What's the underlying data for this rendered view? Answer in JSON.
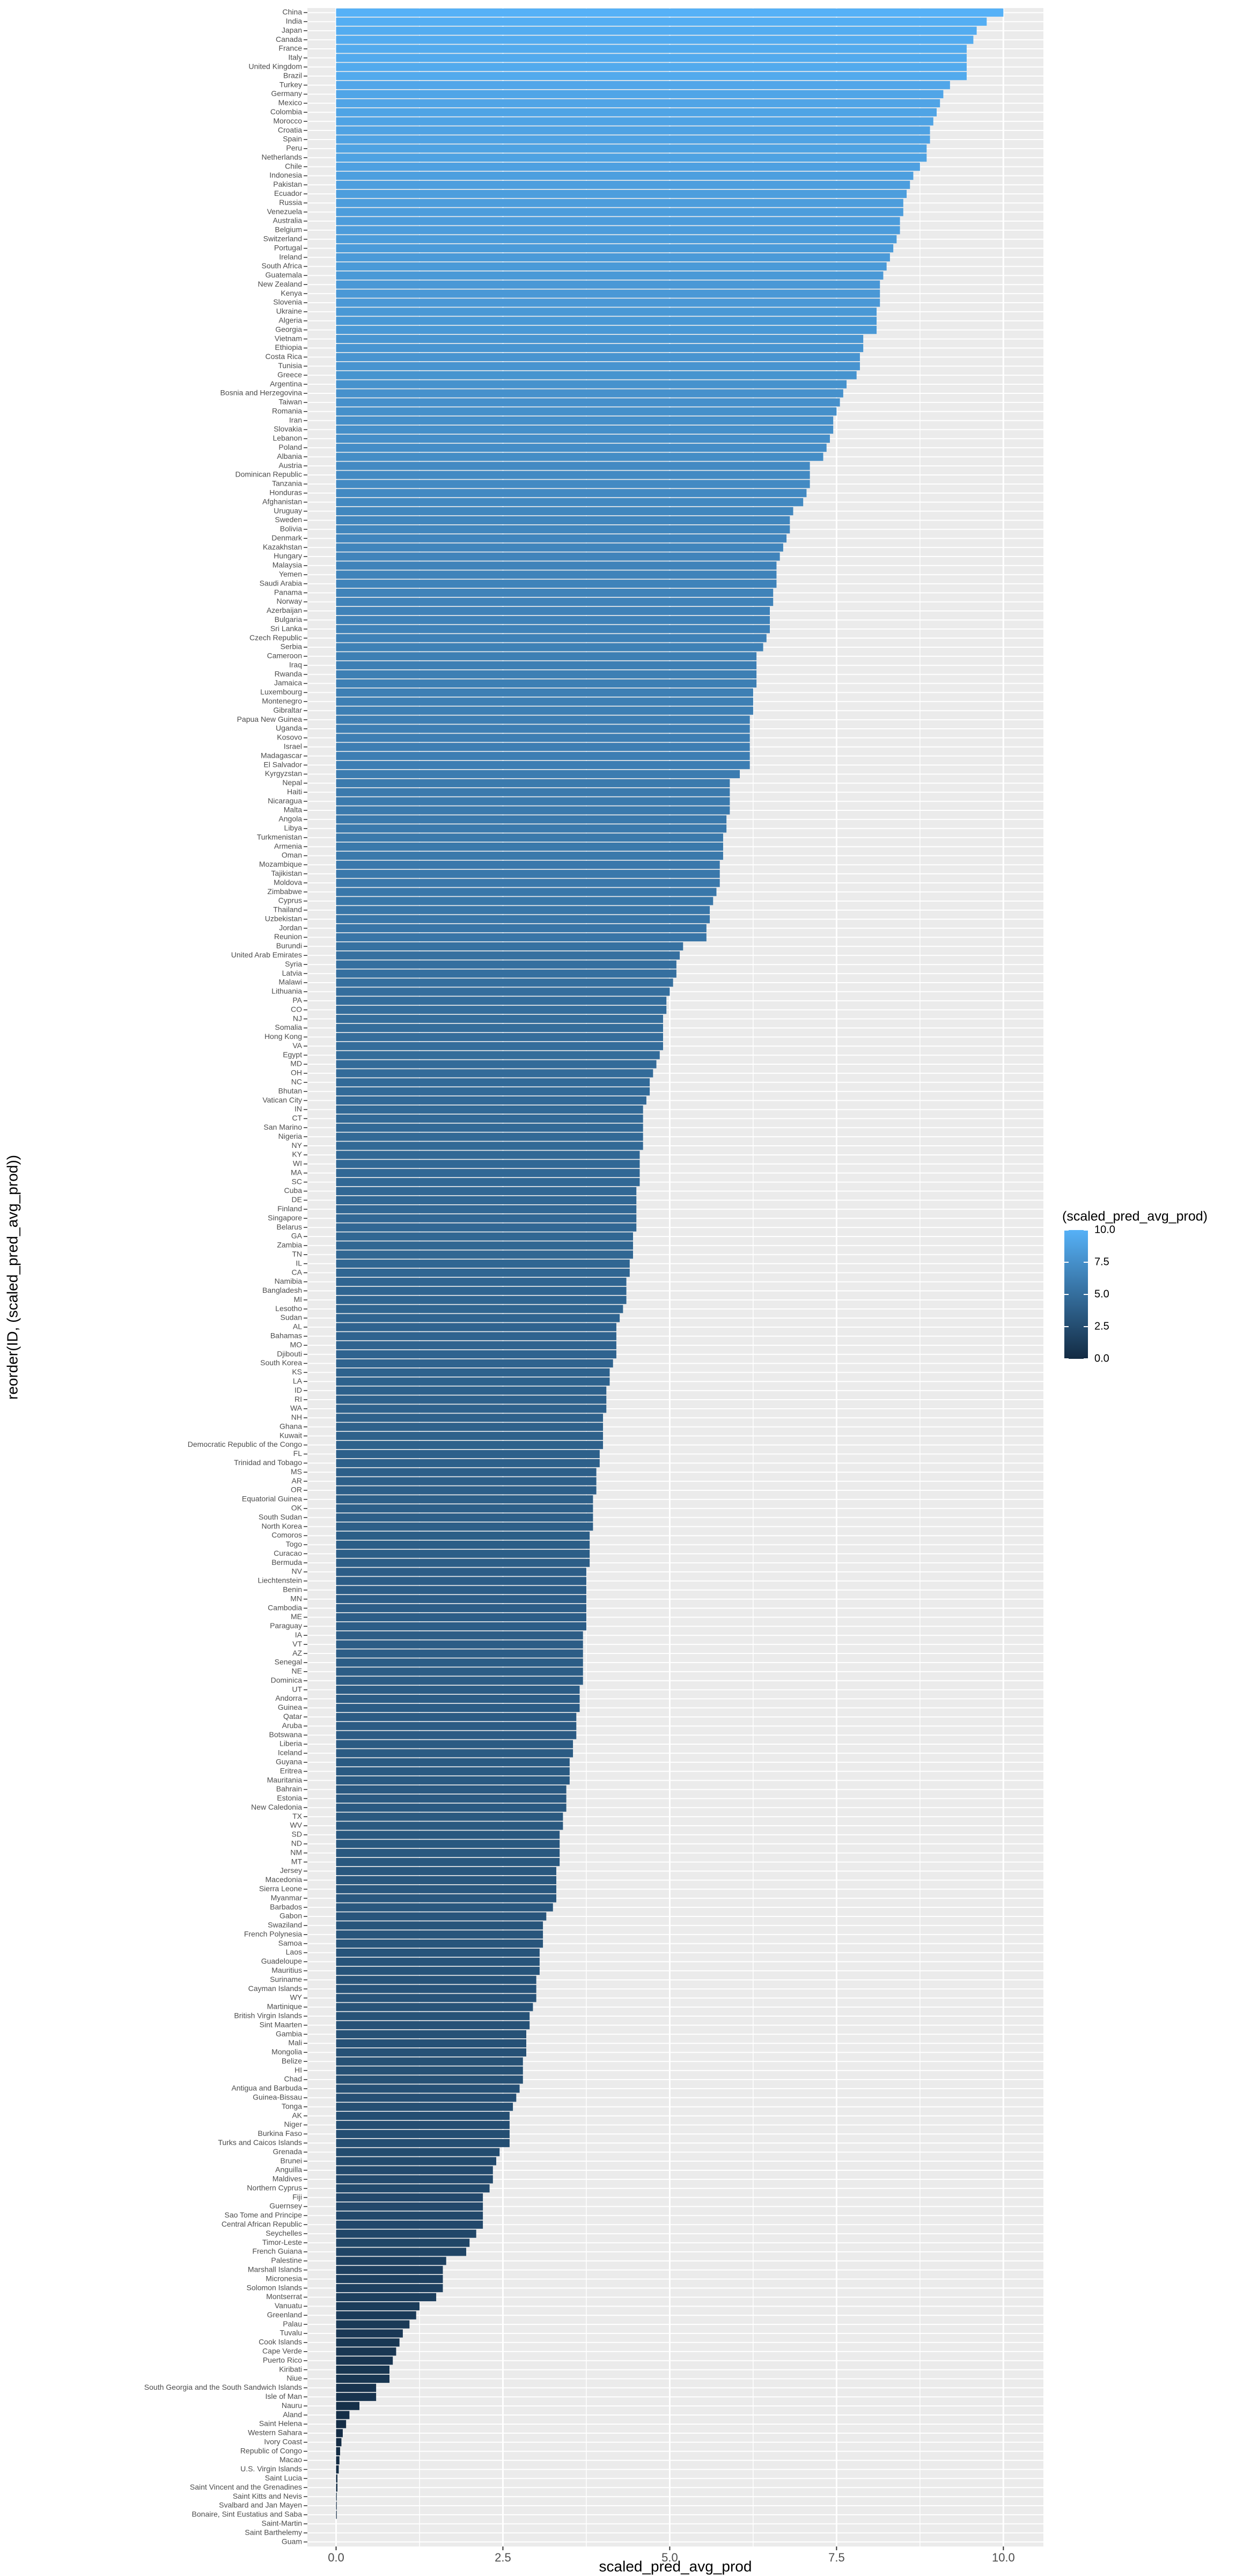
{
  "chart_data": {
    "type": "barh",
    "x_label": "scaled_pred_avg_prod",
    "y_label": "reorder(ID, (scaled_pred_avg_prod))",
    "legend_title": "(scaled_pred_avg_prod)",
    "low_color": "#132b43",
    "high_color": "#56b1f7",
    "color_lim": [
      0,
      10
    ],
    "legend_ticks": [
      {
        "value": 0,
        "label": "0.0"
      },
      {
        "value": 2.5,
        "label": "2.5"
      },
      {
        "value": 5,
        "label": "5.0"
      },
      {
        "value": 7.5,
        "label": "7.5"
      },
      {
        "value": 10,
        "label": "10.0"
      }
    ],
    "xlim": [
      -0.43,
      10.6
    ],
    "xticks": [
      {
        "value": 0,
        "label": "0.0"
      },
      {
        "value": 2.5,
        "label": "2.5"
      },
      {
        "value": 5,
        "label": "5.0"
      },
      {
        "value": 7.5,
        "label": "7.5"
      },
      {
        "value": 10,
        "label": "10.0"
      }
    ],
    "grid": true,
    "categories": [
      "China",
      "India",
      "Japan",
      "Canada",
      "France",
      "Italy",
      "United Kingdom",
      "Brazil",
      "Turkey",
      "Germany",
      "Mexico",
      "Colombia",
      "Morocco",
      "Croatia",
      "Spain",
      "Peru",
      "Netherlands",
      "Chile",
      "Indonesia",
      "Pakistan",
      "Ecuador",
      "Russia",
      "Venezuela",
      "Australia",
      "Belgium",
      "Switzerland",
      "Portugal",
      "Ireland",
      "South Africa",
      "Guatemala",
      "New Zealand",
      "Kenya",
      "Slovenia",
      "Ukraine",
      "Algeria",
      "Georgia",
      "Vietnam",
      "Ethiopia",
      "Costa Rica",
      "Tunisia",
      "Greece",
      "Argentina",
      "Bosnia and Herzegovina",
      "Taiwan",
      "Romania",
      "Iran",
      "Slovakia",
      "Lebanon",
      "Poland",
      "Albania",
      "Austria",
      "Dominican Republic",
      "Tanzania",
      "Honduras",
      "Afghanistan",
      "Uruguay",
      "Sweden",
      "Bolivia",
      "Denmark",
      "Kazakhstan",
      "Hungary",
      "Malaysia",
      "Yemen",
      "Saudi Arabia",
      "Panama",
      "Norway",
      "Azerbaijan",
      "Bulgaria",
      "Sri Lanka",
      "Czech Republic",
      "Serbia",
      "Cameroon",
      "Iraq",
      "Rwanda",
      "Jamaica",
      "Luxembourg",
      "Montenegro",
      "Gibraltar",
      "Papua New Guinea",
      "Uganda",
      "Kosovo",
      "Israel",
      "Madagascar",
      "El Salvador",
      "Kyrgyzstan",
      "Nepal",
      "Haiti",
      "Nicaragua",
      "Malta",
      "Angola",
      "Libya",
      "Turkmenistan",
      "Armenia",
      "Oman",
      "Mozambique",
      "Tajikistan",
      "Moldova",
      "Zimbabwe",
      "Cyprus",
      "Thailand",
      "Uzbekistan",
      "Jordan",
      "Reunion",
      "Burundi",
      "United Arab Emirates",
      "Syria",
      "Latvia",
      "Malawi",
      "Lithuania",
      "PA",
      "CO",
      "NJ",
      "Somalia",
      "Hong Kong",
      "VA",
      "Egypt",
      "MD",
      "OH",
      "NC",
      "Bhutan",
      "Vatican City",
      "IN",
      "CT",
      "San Marino",
      "Nigeria",
      "NY",
      "KY",
      "WI",
      "MA",
      "SC",
      "Cuba",
      "DE",
      "Finland",
      "Singapore",
      "Belarus",
      "GA",
      "Zambia",
      "TN",
      "IL",
      "CA",
      "Namibia",
      "Bangladesh",
      "MI",
      "Lesotho",
      "Sudan",
      "AL",
      "Bahamas",
      "MO",
      "Djibouti",
      "South Korea",
      "KS",
      "LA",
      "ID",
      "RI",
      "WA",
      "NH",
      "Ghana",
      "Kuwait",
      "Democratic Republic of the Congo",
      "FL",
      "Trinidad and Tobago",
      "MS",
      "AR",
      "OR",
      "Equatorial Guinea",
      "OK",
      "South Sudan",
      "North Korea",
      "Comoros",
      "Togo",
      "Curacao",
      "Bermuda",
      "NV",
      "Liechtenstein",
      "Benin",
      "MN",
      "Cambodia",
      "ME",
      "Paraguay",
      "IA",
      "VT",
      "AZ",
      "Senegal",
      "NE",
      "Dominica",
      "UT",
      "Andorra",
      "Guinea",
      "Qatar",
      "Aruba",
      "Botswana",
      "Liberia",
      "Iceland",
      "Guyana",
      "Eritrea",
      "Mauritania",
      "Bahrain",
      "Estonia",
      "New Caledonia",
      "TX",
      "WV",
      "SD",
      "ND",
      "NM",
      "MT",
      "Jersey",
      "Macedonia",
      "Sierra Leone",
      "Myanmar",
      "Barbados",
      "Gabon",
      "Swaziland",
      "French Polynesia",
      "Samoa",
      "Laos",
      "Guadeloupe",
      "Mauritius",
      "Suriname",
      "Cayman Islands",
      "WY",
      "Martinique",
      "British Virgin Islands",
      "Sint Maarten",
      "Gambia",
      "Mali",
      "Mongolia",
      "Belize",
      "HI",
      "Chad",
      "Antigua and Barbuda",
      "Guinea-Bissau",
      "Tonga",
      "AK",
      "Niger",
      "Burkina Faso",
      "Turks and Caicos Islands",
      "Grenada",
      "Brunei",
      "Anguilla",
      "Maldives",
      "Northern Cyprus",
      "Fiji",
      "Guernsey",
      "Sao Tome and Principe",
      "Central African Republic",
      "Seychelles",
      "Timor-Leste",
      "French Guiana",
      "Palestine",
      "Marshall Islands",
      "Micronesia",
      "Solomon Islands",
      "Montserrat",
      "Vanuatu",
      "Greenland",
      "Palau",
      "Tuvalu",
      "Cook Islands",
      "Cape Verde",
      "Puerto Rico",
      "Kiribati",
      "Niue",
      "South Georgia and the South Sandwich Islands",
      "Isle of Man",
      "Nauru",
      "Aland",
      "Saint Helena",
      "Western Sahara",
      "Ivory Coast",
      "Republic of Congo",
      "Macao",
      "U.S. Virgin Islands",
      "Saint Lucia",
      "Saint Vincent and the Grenadines",
      "Saint Kitts and Nevis",
      "Svalbard and Jan Mayen",
      "Bonaire, Sint Eustatius and Saba",
      "Saint-Martin",
      "Saint Barthelemy",
      "Guam"
    ],
    "values": [
      10,
      9.75,
      9.6,
      9.55,
      9.45,
      9.45,
      9.45,
      9.45,
      9.2,
      9.1,
      9.05,
      9.0,
      8.95,
      8.9,
      8.9,
      8.85,
      8.85,
      8.75,
      8.65,
      8.6,
      8.55,
      8.5,
      8.5,
      8.45,
      8.45,
      8.4,
      8.35,
      8.3,
      8.25,
      8.2,
      8.15,
      8.15,
      8.15,
      8.1,
      8.1,
      8.1,
      7.9,
      7.9,
      7.85,
      7.85,
      7.8,
      7.65,
      7.6,
      7.55,
      7.5,
      7.45,
      7.45,
      7.4,
      7.35,
      7.3,
      7.1,
      7.1,
      7.1,
      7.05,
      7.0,
      6.85,
      6.8,
      6.8,
      6.75,
      6.7,
      6.65,
      6.6,
      6.6,
      6.6,
      6.55,
      6.55,
      6.5,
      6.5,
      6.5,
      6.45,
      6.4,
      6.3,
      6.3,
      6.3,
      6.3,
      6.25,
      6.25,
      6.25,
      6.2,
      6.2,
      6.2,
      6.2,
      6.2,
      6.2,
      6.05,
      5.9,
      5.9,
      5.9,
      5.9,
      5.85,
      5.85,
      5.8,
      5.8,
      5.8,
      5.75,
      5.75,
      5.75,
      5.7,
      5.65,
      5.6,
      5.6,
      5.55,
      5.55,
      5.2,
      5.15,
      5.1,
      5.1,
      5.05,
      5.0,
      4.95,
      4.95,
      4.9,
      4.9,
      4.9,
      4.9,
      4.85,
      4.8,
      4.75,
      4.7,
      4.7,
      4.65,
      4.6,
      4.6,
      4.6,
      4.6,
      4.6,
      4.55,
      4.55,
      4.55,
      4.55,
      4.5,
      4.5,
      4.5,
      4.5,
      4.5,
      4.45,
      4.45,
      4.45,
      4.4,
      4.4,
      4.35,
      4.35,
      4.35,
      4.3,
      4.25,
      4.2,
      4.2,
      4.2,
      4.2,
      4.15,
      4.1,
      4.1,
      4.05,
      4.05,
      4.05,
      4.0,
      4.0,
      4.0,
      4.0,
      3.95,
      3.95,
      3.9,
      3.9,
      3.9,
      3.85,
      3.85,
      3.85,
      3.85,
      3.8,
      3.8,
      3.8,
      3.8,
      3.75,
      3.75,
      3.75,
      3.75,
      3.75,
      3.75,
      3.75,
      3.7,
      3.7,
      3.7,
      3.7,
      3.7,
      3.7,
      3.65,
      3.65,
      3.65,
      3.6,
      3.6,
      3.6,
      3.55,
      3.55,
      3.5,
      3.5,
      3.5,
      3.45,
      3.45,
      3.45,
      3.4,
      3.4,
      3.35,
      3.35,
      3.35,
      3.35,
      3.3,
      3.3,
      3.3,
      3.3,
      3.25,
      3.15,
      3.1,
      3.1,
      3.1,
      3.05,
      3.05,
      3.05,
      3.0,
      3.0,
      3.0,
      2.95,
      2.9,
      2.9,
      2.85,
      2.85,
      2.85,
      2.8,
      2.8,
      2.8,
      2.75,
      2.7,
      2.65,
      2.6,
      2.6,
      2.6,
      2.6,
      2.45,
      2.4,
      2.35,
      2.35,
      2.3,
      2.2,
      2.2,
      2.2,
      2.2,
      2.1,
      2.0,
      1.95,
      1.65,
      1.6,
      1.6,
      1.6,
      1.5,
      1.25,
      1.2,
      1.1,
      1.0,
      0.95,
      0.9,
      0.85,
      0.8,
      0.8,
      0.6,
      0.6,
      0.35,
      0.2,
      0.15,
      0.1,
      0.08,
      0.06,
      0.05,
      0.04,
      0.02,
      0.02,
      0.01,
      0.01,
      0.01,
      0,
      0,
      0
    ]
  }
}
